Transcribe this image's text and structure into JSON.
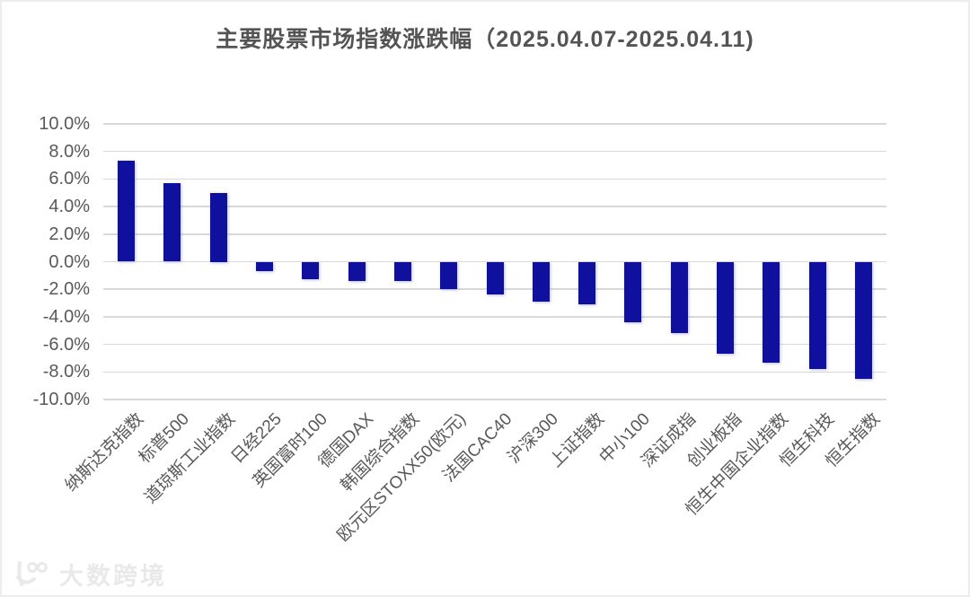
{
  "page": {
    "background": "#ffffff",
    "border_color": "#ededed"
  },
  "chart_data": {
    "type": "bar",
    "title": "主要股票市场指数涨跌幅（2025.04.07-2025.04.11)",
    "categories": [
      "纳斯达克指数",
      "标普500",
      "道琼斯工业指数",
      "日经225",
      "英国富时100",
      "德国DAX",
      "韩国综合指数",
      "欧元区STOXX50(欧元)",
      "法国CAC40",
      "沪深300",
      "上证指数",
      "中小100",
      "深证成指",
      "创业板指",
      "恒生中国企业指数",
      "恒生科技",
      "恒生指数"
    ],
    "values": [
      7.3,
      5.7,
      5.0,
      -0.7,
      -1.3,
      -1.4,
      -1.4,
      -2.0,
      -2.4,
      -2.9,
      -3.1,
      -4.4,
      -5.2,
      -6.7,
      -7.3,
      -7.8,
      -8.5
    ],
    "unit": "%",
    "xlabel": "",
    "ylabel": "",
    "ylim": [
      -10,
      10
    ],
    "y_tick_step": 2,
    "y_tick_labels": [
      "10.0%",
      "8.0%",
      "6.0%",
      "4.0%",
      "2.0%",
      "0.0%",
      "-2.0%",
      "-4.0%",
      "-6.0%",
      "-8.0%",
      "-10.0%"
    ],
    "grid": true,
    "legend_position": "none",
    "bar_color": "#10109E",
    "gridline_color": "#d9d9d9",
    "axis_label_color": "#595959",
    "title_color": "#545454"
  },
  "watermark": {
    "text": "大数跨境",
    "logo": "k100-smile-logo",
    "color": "#e9e9e9"
  }
}
